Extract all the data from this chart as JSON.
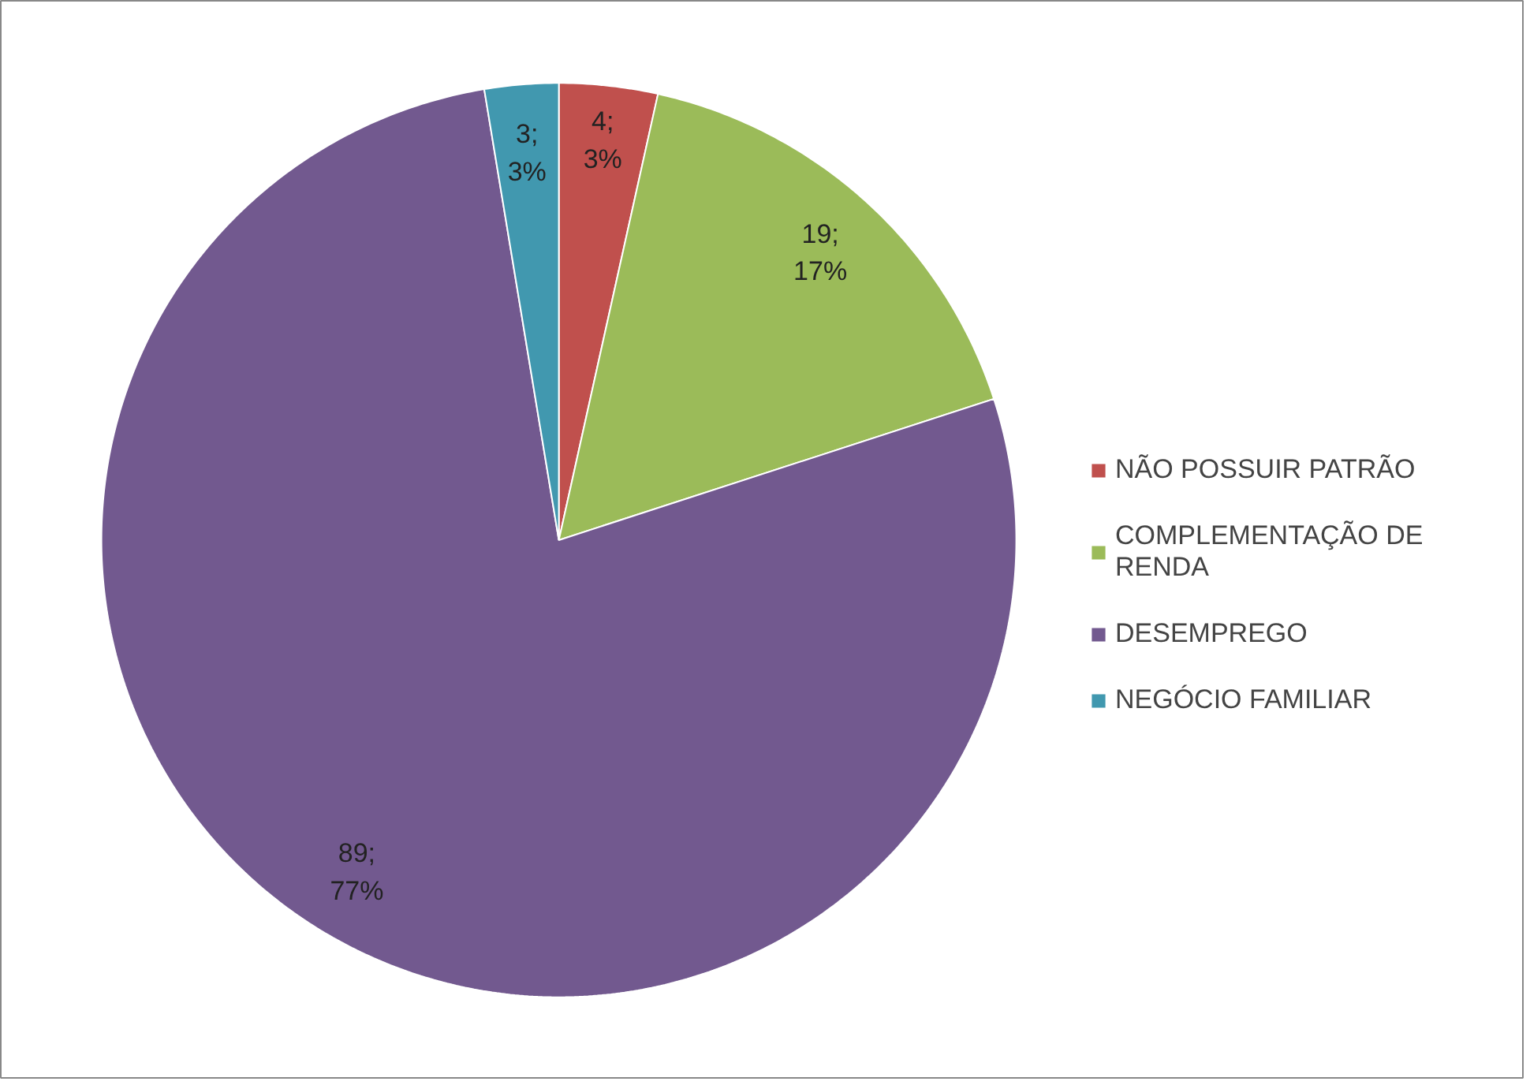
{
  "chart_data": {
    "type": "pie",
    "categories": [
      "NÃO POSSUIR PATRÃO",
      "COMPLEMENTAÇÃO DE RENDA",
      "DESEMPREGO",
      "NEGÓCIO FAMILIAR"
    ],
    "values": [
      4,
      19,
      89,
      3
    ],
    "colors": [
      "#c0504d",
      "#9bbb59",
      "#72598f",
      "#4198af"
    ],
    "value_labels": [
      "4;\n3%",
      "19;\n17%",
      "89;\n77%",
      "3;\n3%"
    ],
    "legend": "right"
  }
}
